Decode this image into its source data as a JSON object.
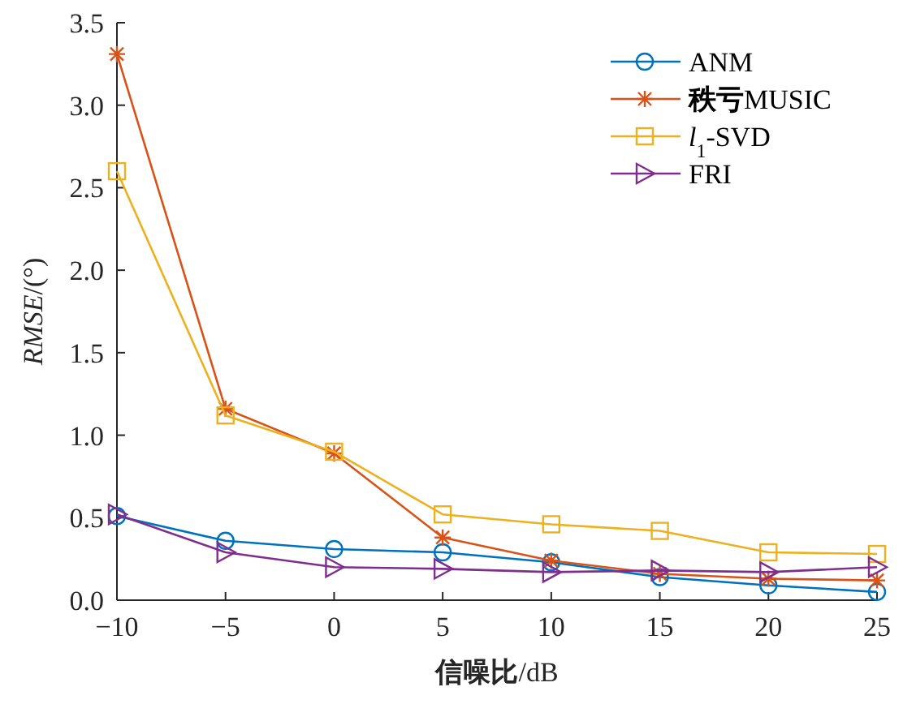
{
  "chart_data": {
    "type": "line",
    "xlabel": "**信噪比**/dB",
    "ylabel": "*RMSE*/(°)",
    "x": [
      -10,
      -5,
      0,
      5,
      10,
      15,
      20,
      25
    ],
    "series": [
      {
        "name": "ANM",
        "color": "#0072bd",
        "marker": "circle",
        "values": [
          0.51,
          0.36,
          0.31,
          0.29,
          0.23,
          0.14,
          0.09,
          0.05
        ]
      },
      {
        "name": "**秩亏**MUSIC",
        "color": "#d95319",
        "marker": "cross",
        "values": [
          3.31,
          1.16,
          0.89,
          0.38,
          0.24,
          0.16,
          0.13,
          0.12
        ]
      },
      {
        "name": "*l*$_{1}$-SVD",
        "color": "#edb120",
        "marker": "square",
        "values": [
          2.6,
          1.12,
          0.9,
          0.52,
          0.46,
          0.42,
          0.29,
          0.28
        ]
      },
      {
        "name": "FRI",
        "color": "#7e2f8e",
        "marker": "triangle",
        "values": [
          0.52,
          0.29,
          0.2,
          0.19,
          0.17,
          0.18,
          0.17,
          0.2
        ]
      }
    ],
    "xlim": [
      -10,
      25
    ],
    "xticks": [
      {
        "value": -10,
        "label": "−10"
      },
      {
        "value": -5,
        "label": "−5"
      },
      0,
      5,
      10,
      15,
      20,
      25
    ],
    "ylim": [
      0,
      3.5
    ],
    "yticks": [
      {
        "value": 0,
        "label": "0.0"
      },
      {
        "value": 0.5,
        "label": "0.5"
      },
      {
        "value": 1,
        "label": "1.0"
      },
      {
        "value": 1.5,
        "label": "1.5"
      },
      {
        "value": 2,
        "label": "2.0"
      },
      {
        "value": 2.5,
        "label": "2.5"
      },
      {
        "value": 3,
        "label": "3.0"
      },
      {
        "value": 3.5,
        "label": "3.5"
      }
    ],
    "grid": false,
    "legend": "top right",
    "line_style": "solid"
  }
}
